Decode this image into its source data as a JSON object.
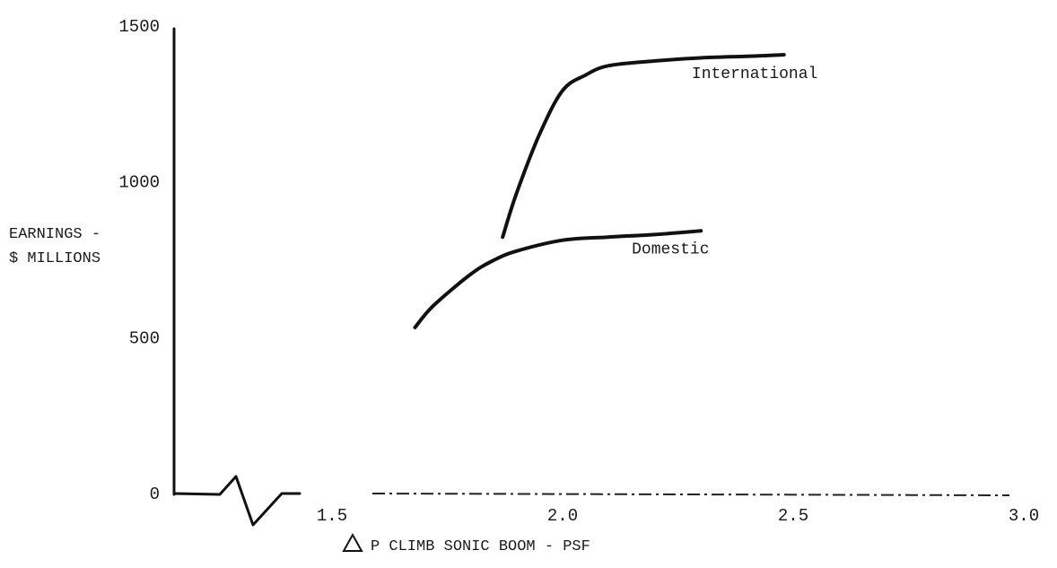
{
  "chart_data": {
    "type": "line",
    "title": "",
    "xlabel": "Δ P CLIMB SONIC BOOM - PSF",
    "xlabel_text": "P CLIMB SONIC BOOM - PSF",
    "ylabel_lines": [
      "EARNINGS -",
      "$ MILLIONS"
    ],
    "xlim": [
      1.3,
      3.0
    ],
    "ylim": [
      0,
      1500
    ],
    "x_broken_axis": true,
    "grid": false,
    "x_ticks": [
      {
        "value": 1.5,
        "label": "1.5"
      },
      {
        "value": 2.0,
        "label": "2.0"
      },
      {
        "value": 2.5,
        "label": "2.5"
      },
      {
        "value": 3.0,
        "label": "3.0"
      }
    ],
    "y_ticks": [
      {
        "value": 0,
        "label": "0"
      },
      {
        "value": 500,
        "label": "500"
      },
      {
        "value": 1000,
        "label": "1000"
      },
      {
        "value": 1500,
        "label": "1500"
      }
    ],
    "series": [
      {
        "name": "International",
        "x": [
          1.87,
          1.9,
          1.95,
          2.0,
          2.05,
          2.1,
          2.2,
          2.3,
          2.4,
          2.48
        ],
        "y": [
          820,
          960,
          1150,
          1290,
          1340,
          1370,
          1385,
          1395,
          1400,
          1405
        ]
      },
      {
        "name": "Domestic",
        "x": [
          1.68,
          1.72,
          1.8,
          1.85,
          1.9,
          2.0,
          2.1,
          2.2,
          2.3
        ],
        "y": [
          530,
          600,
          700,
          745,
          775,
          810,
          820,
          828,
          840
        ]
      }
    ]
  }
}
